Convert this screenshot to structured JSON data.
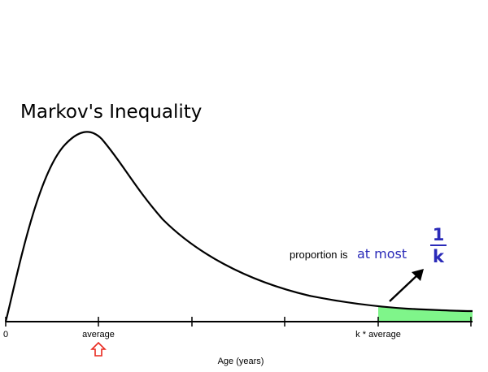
{
  "title": "Markov's Inequality",
  "x_axis": {
    "label": "Age (years)",
    "tick_labels": {
      "zero": "0",
      "average": "average",
      "k_average": "k * average"
    }
  },
  "annotation": {
    "prefix": "proportion is",
    "emphasis": "at most",
    "fraction_numerator": "1",
    "fraction_denominator": "k"
  },
  "colors": {
    "curve": "#000000",
    "tail_fill": "#7ff58a",
    "average_arrow": "#e8281e",
    "emphasis_text": "#2a2ab8"
  },
  "icons": {
    "average_marker": "up-arrow-outline-icon",
    "bound_pointer": "diagonal-arrow-icon"
  }
}
